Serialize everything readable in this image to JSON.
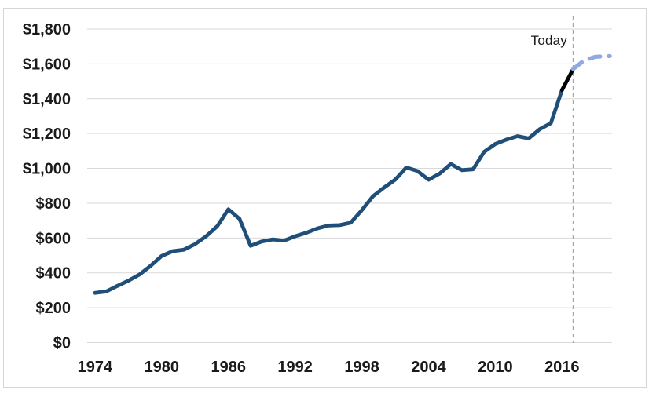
{
  "chart_data": {
    "type": "line",
    "title": "",
    "xlabel": "",
    "ylabel": "",
    "grid": "horizontal-only",
    "x_range": [
      1973.3,
      2020.5
    ],
    "y_range": [
      0,
      1800
    ],
    "y_ticks": {
      "values": [
        0,
        200,
        400,
        600,
        800,
        1000,
        1200,
        1400,
        1600,
        1800
      ],
      "labels": [
        "$0",
        "$200",
        "$400",
        "$600",
        "$800",
        "$1,000",
        "$1,200",
        "$1,400",
        "$1,600",
        "$1,800"
      ]
    },
    "x_ticks": {
      "values": [
        1974,
        1980,
        1986,
        1992,
        1998,
        2004,
        2010,
        2016
      ],
      "labels": [
        "1974",
        "1980",
        "1986",
        "1992",
        "1998",
        "2004",
        "2010",
        "2016"
      ]
    },
    "series": [
      {
        "name": "historical",
        "color": "#1F4E79",
        "dash": "solid",
        "x": [
          1974,
          1975,
          1976,
          1977,
          1978,
          1979,
          1980,
          1981,
          1982,
          1983,
          1984,
          1985,
          1986,
          1987,
          1988,
          1989,
          1990,
          1991,
          1992,
          1993,
          1994,
          1995,
          1996,
          1997,
          1998,
          1999,
          2000,
          2001,
          2002,
          2003,
          2004,
          2005,
          2006,
          2007,
          2008,
          2009,
          2010,
          2011,
          2012,
          2013,
          2014,
          2015,
          2016
        ],
        "values": [
          285,
          293,
          325,
          355,
          390,
          440,
          497,
          525,
          533,
          565,
          610,
          668,
          765,
          710,
          555,
          580,
          592,
          585,
          610,
          630,
          655,
          672,
          674,
          688,
          760,
          840,
          890,
          935,
          1005,
          985,
          935,
          970,
          1025,
          990,
          995,
          1095,
          1140,
          1165,
          1185,
          1172,
          1225,
          1260,
          1450
        ]
      },
      {
        "name": "recent-actual",
        "color": "#000000",
        "dash": "solid",
        "x": [
          2016,
          2017
        ],
        "values": [
          1450,
          1570
        ]
      },
      {
        "name": "forecast",
        "color": "#8FAADC",
        "dash": "dashed",
        "x": [
          2017,
          2018,
          2019,
          2020.3
        ],
        "values": [
          1570,
          1620,
          1641,
          1645
        ]
      }
    ],
    "annotations": [
      {
        "type": "vline",
        "x": 2017,
        "style": "dashed",
        "color": "#A6A6A6"
      },
      {
        "type": "label",
        "text": "Today",
        "x": 2017,
        "align": "right"
      }
    ],
    "colors": {
      "gridline": "#D9D9D9",
      "frame_border": "#D6D6D6",
      "tick_label": "#1a1a1a",
      "background": "#FFFFFF"
    },
    "legend": "none"
  }
}
